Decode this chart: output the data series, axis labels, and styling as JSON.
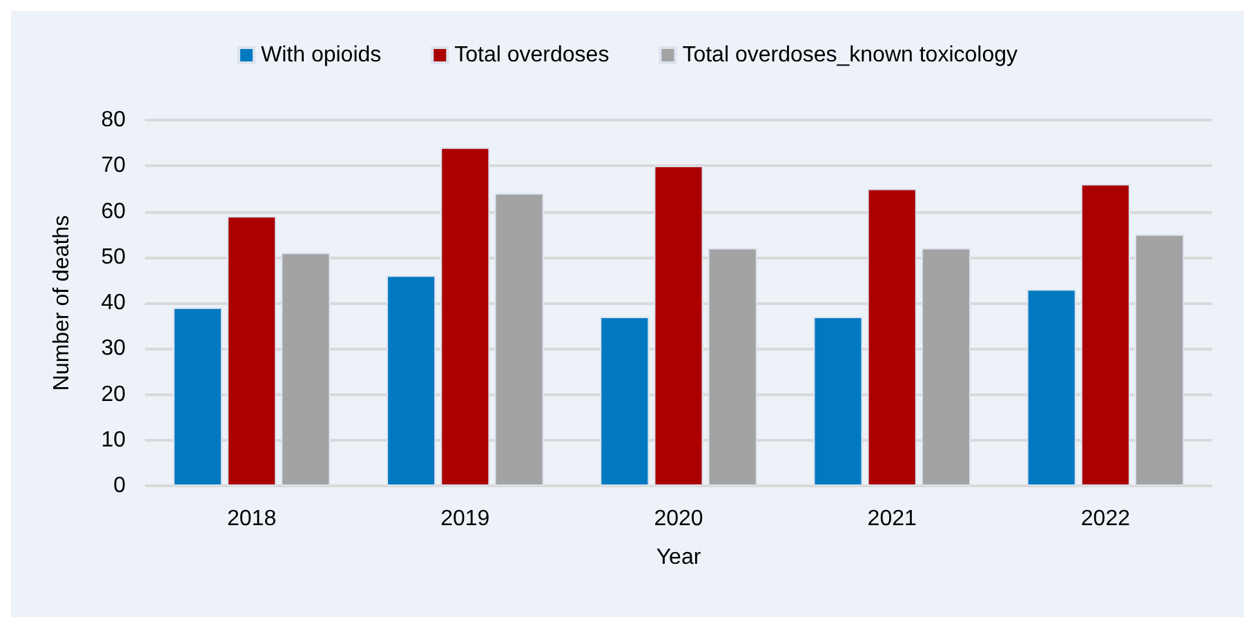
{
  "chart_data": {
    "type": "bar",
    "xlabel": "Year",
    "ylabel": "Number of deaths",
    "categories": [
      "2018",
      "2019",
      "2020",
      "2021",
      "2022"
    ],
    "series": [
      {
        "name": "With opioids",
        "color": "#0079c1",
        "values": [
          39,
          46,
          37,
          37,
          43
        ]
      },
      {
        "name": "Total overdoses",
        "color": "#aa0000",
        "values": [
          59,
          74,
          70,
          65,
          66
        ]
      },
      {
        "name": "Total overdoses_known toxicology",
        "color": "#a3a3a3",
        "values": [
          51,
          64,
          52,
          52,
          55
        ]
      }
    ],
    "ylim": [
      0,
      80
    ],
    "yticks": [
      0,
      10,
      20,
      30,
      40,
      50,
      60,
      70,
      80
    ],
    "grid": "y",
    "legend": "top"
  }
}
